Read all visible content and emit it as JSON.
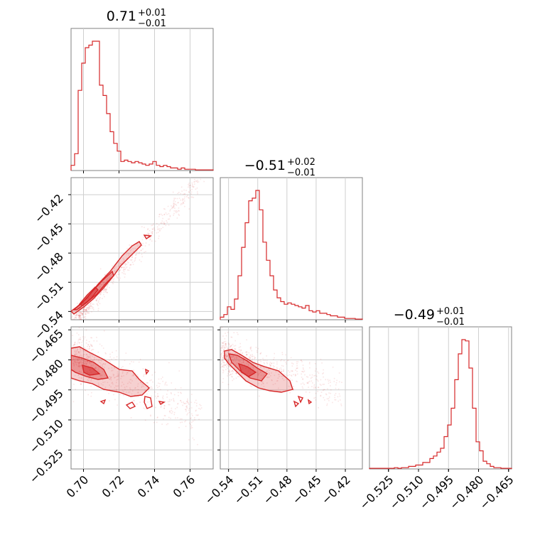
{
  "chart_data": {
    "type": "corner",
    "color": "#d62728",
    "grid": true,
    "parameters": [
      {
        "title": {
          "value": "0.71",
          "sup": "+0.01",
          "sub": "−0.01"
        },
        "range": [
          0.693,
          0.773
        ],
        "ticks": [
          {
            "v": 0.7,
            "label": "0.70"
          },
          {
            "v": 0.72,
            "label": "0.72"
          },
          {
            "v": 0.74,
            "label": "0.74"
          },
          {
            "v": 0.76,
            "label": "0.76"
          }
        ]
      },
      {
        "title": {
          "value": "−0.51",
          "sup": "+0.02",
          "sub": "−0.01"
        },
        "range": [
          -0.5485,
          -0.4025
        ],
        "ticks": [
          {
            "v": -0.54,
            "label": "−0.54"
          },
          {
            "v": -0.51,
            "label": "−0.51"
          },
          {
            "v": -0.48,
            "label": "−0.48"
          },
          {
            "v": -0.45,
            "label": "−0.45"
          },
          {
            "v": -0.42,
            "label": "−0.42"
          }
        ]
      },
      {
        "title": {
          "value": "−0.49",
          "sup": "+0.01",
          "sub": "−0.01"
        },
        "range": [
          -0.5345,
          -0.4635
        ],
        "ticks": [
          {
            "v": -0.525,
            "label": "−0.525"
          },
          {
            "v": -0.51,
            "label": "−0.510"
          },
          {
            "v": -0.495,
            "label": "−0.495"
          },
          {
            "v": -0.48,
            "label": "−0.480"
          },
          {
            "v": -0.465,
            "label": "−0.465"
          }
        ]
      }
    ],
    "histograms": [
      [
        0.04,
        0.13,
        0.62,
        0.83,
        0.95,
        0.97,
        1.0,
        1.0,
        0.66,
        0.58,
        0.44,
        0.3,
        0.21,
        0.15,
        0.07,
        0.08,
        0.07,
        0.06,
        0.07,
        0.06,
        0.05,
        0.04,
        0.05,
        0.07,
        0.04,
        0.03,
        0.04,
        0.03,
        0.02,
        0.02,
        0.01,
        0.02,
        0.01,
        0.01,
        0.01,
        0.005,
        0.005,
        0.005,
        0.005,
        0.005
      ],
      [
        0.02,
        0.04,
        0.1,
        0.08,
        0.16,
        0.34,
        0.56,
        0.75,
        0.92,
        0.94,
        1.0,
        0.85,
        0.6,
        0.46,
        0.34,
        0.23,
        0.17,
        0.14,
        0.12,
        0.13,
        0.12,
        0.11,
        0.1,
        0.09,
        0.11,
        0.07,
        0.06,
        0.07,
        0.05,
        0.05,
        0.04,
        0.03,
        0.03,
        0.02,
        0.02,
        0.01,
        0.01,
        0.01,
        0.005,
        0.005
      ],
      [
        0.005,
        0.005,
        0.005,
        0.005,
        0.005,
        0.005,
        0.005,
        0.01,
        0.005,
        0.01,
        0.01,
        0.02,
        0.02,
        0.03,
        0.03,
        0.05,
        0.05,
        0.08,
        0.1,
        0.13,
        0.16,
        0.25,
        0.34,
        0.47,
        0.69,
        0.89,
        1.0,
        0.99,
        0.78,
        0.47,
        0.21,
        0.14,
        0.06,
        0.04,
        0.02,
        0.01,
        0.01,
        0.005,
        0.005,
        0.005
      ]
    ]
  }
}
